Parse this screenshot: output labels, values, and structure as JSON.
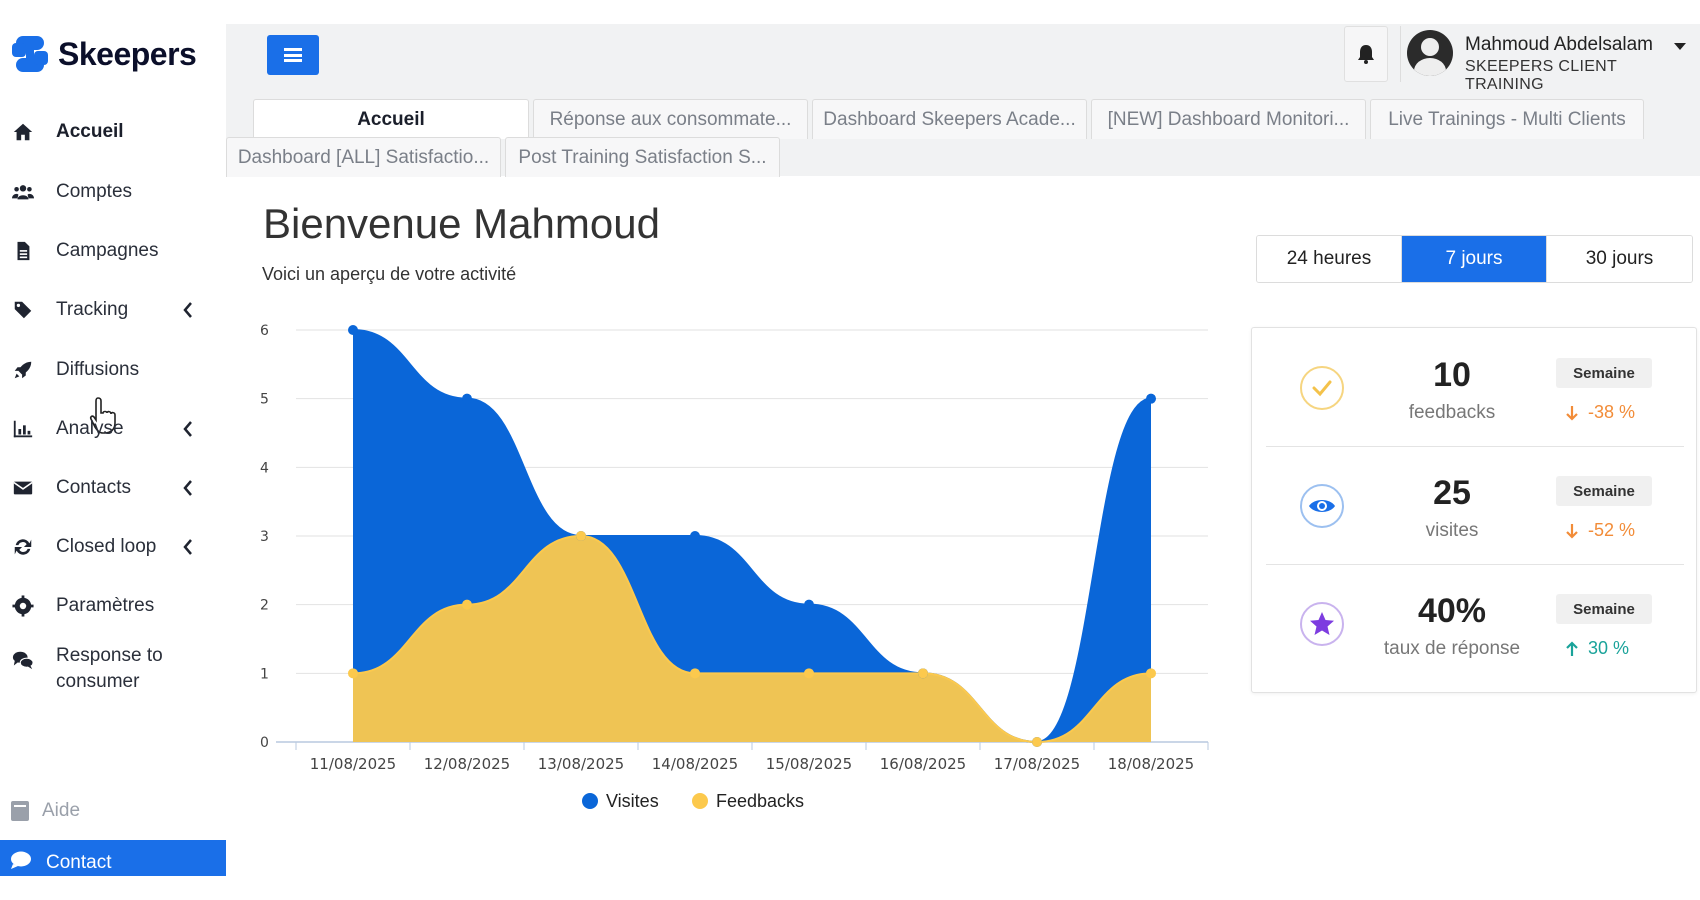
{
  "brand": {
    "name": "Skeepers",
    "accent": "#1a6fe8"
  },
  "sidebar": {
    "items": [
      {
        "label": "Accueil",
        "icon": "home-icon",
        "active": true
      },
      {
        "label": "Comptes",
        "icon": "users-icon"
      },
      {
        "label": "Campagnes",
        "icon": "file-icon"
      },
      {
        "label": "Tracking",
        "icon": "tag-icon",
        "expandable": true
      },
      {
        "label": "Diffusions",
        "icon": "rocket-icon"
      },
      {
        "label": "Analyse",
        "icon": "chart-icon",
        "expandable": true
      },
      {
        "label": "Contacts",
        "icon": "envelope-icon",
        "expandable": true
      },
      {
        "label": "Closed loop",
        "icon": "refresh-icon",
        "expandable": true
      },
      {
        "label": "Paramètres",
        "icon": "gear-icon"
      },
      {
        "label": "Response to consumer",
        "icon": "comments-icon"
      }
    ],
    "help_label": "Aide",
    "contact_label": "Contact"
  },
  "header": {
    "user_name": "Mahmoud Abdelsalam",
    "user_org": "SKEEPERS CLIENT TRAINING"
  },
  "tabs": [
    {
      "label": "Accueil",
      "active": true
    },
    {
      "label": "Réponse aux consommate..."
    },
    {
      "label": "Dashboard Skeepers Acade..."
    },
    {
      "label": "[NEW] Dashboard Monitori..."
    },
    {
      "label": "Live Trainings - Multi Clients"
    },
    {
      "label": "Dashboard [ALL] Satisfactio..."
    },
    {
      "label": "Post Training Satisfaction S..."
    }
  ],
  "main": {
    "welcome": "Bienvenue Mahmoud",
    "subtitle": "Voici un aperçu de votre activité",
    "ranges": [
      {
        "label": "24 heures"
      },
      {
        "label": "7 jours",
        "active": true
      },
      {
        "label": "30 jours"
      }
    ]
  },
  "stats": [
    {
      "value": "10",
      "label": "feedbacks",
      "period": "Semaine",
      "delta": "-38 %",
      "direction": "down",
      "icon": "check-icon",
      "color": "#f28c38"
    },
    {
      "value": "25",
      "label": "visites",
      "period": "Semaine",
      "delta": "-52 %",
      "direction": "down",
      "icon": "eye-icon",
      "color": "#f28c38"
    },
    {
      "value": "40%",
      "label": "taux de réponse",
      "period": "Semaine",
      "delta": "30 %",
      "direction": "up",
      "icon": "star-icon",
      "color": "#1aa39a"
    }
  ],
  "chart_data": {
    "type": "area",
    "categories": [
      "11/08/2025",
      "12/08/2025",
      "13/08/2025",
      "14/08/2025",
      "15/08/2025",
      "16/08/2025",
      "17/08/2025",
      "18/08/2025"
    ],
    "series": [
      {
        "name": "Visites",
        "values": [
          6,
          5,
          3,
          3,
          2,
          1,
          0,
          5
        ],
        "color": "#0a66d8"
      },
      {
        "name": "Feedbacks",
        "values": [
          1,
          2,
          3,
          1,
          1,
          1,
          0,
          1
        ],
        "color": "#fcc94d"
      }
    ],
    "ylim": [
      0,
      6
    ],
    "yticks": [
      "0",
      "1",
      "2",
      "3",
      "4",
      "5",
      "6"
    ],
    "grid": true,
    "legend": "bottom-center"
  }
}
